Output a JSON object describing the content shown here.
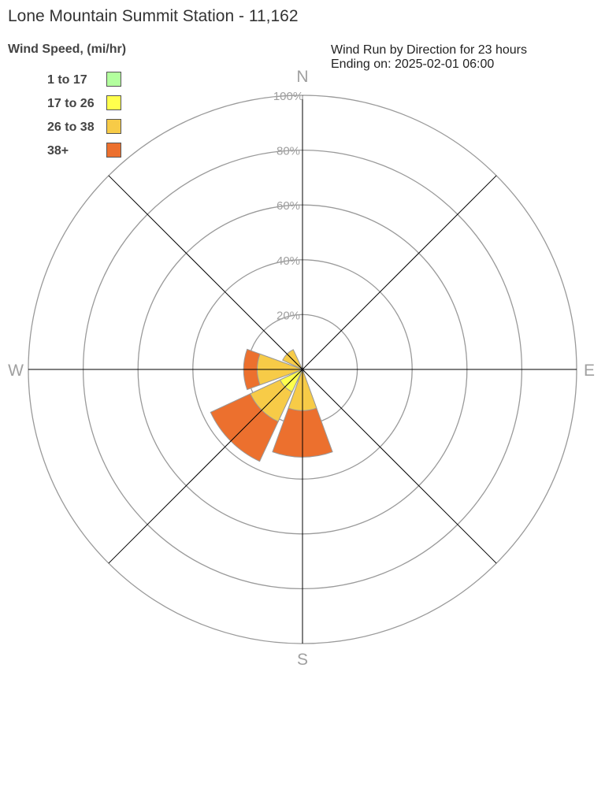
{
  "title": "Lone Mountain Summit Station - 11,162",
  "subtitle_line1": "Wind Run by Direction for 23 hours",
  "subtitle_line2": "Ending on: 2025-02-01 06:00",
  "chart_data": {
    "type": "bar",
    "polar": true,
    "legend_title": "Wind Speed, (mi/hr)",
    "legend_position": "top-left",
    "radial_ticks": [
      "20%",
      "40%",
      "60%",
      "80%",
      "100%"
    ],
    "radial_range": [
      0,
      100
    ],
    "direction_labels": [
      "N",
      "E",
      "S",
      "W"
    ],
    "categories": [
      "N",
      "NE",
      "E",
      "SE",
      "S",
      "SW",
      "W",
      "NW"
    ],
    "series": [
      {
        "name": "1 to 17",
        "color": "#b3ff9e",
        "values": [
          0,
          0,
          0,
          0,
          0,
          0,
          0,
          0
        ]
      },
      {
        "name": "17 to 26",
        "color": "#ffff4d",
        "values": [
          0,
          0,
          0,
          0,
          0,
          9,
          0,
          0
        ]
      },
      {
        "name": "26 to 38",
        "color": "#f7cb47",
        "values": [
          0,
          0,
          0,
          0,
          15,
          12,
          16.5,
          8
        ]
      },
      {
        "name": "38+",
        "color": "#ec702e",
        "values": [
          0,
          0,
          0,
          0,
          17,
          16,
          5,
          0
        ]
      }
    ]
  }
}
